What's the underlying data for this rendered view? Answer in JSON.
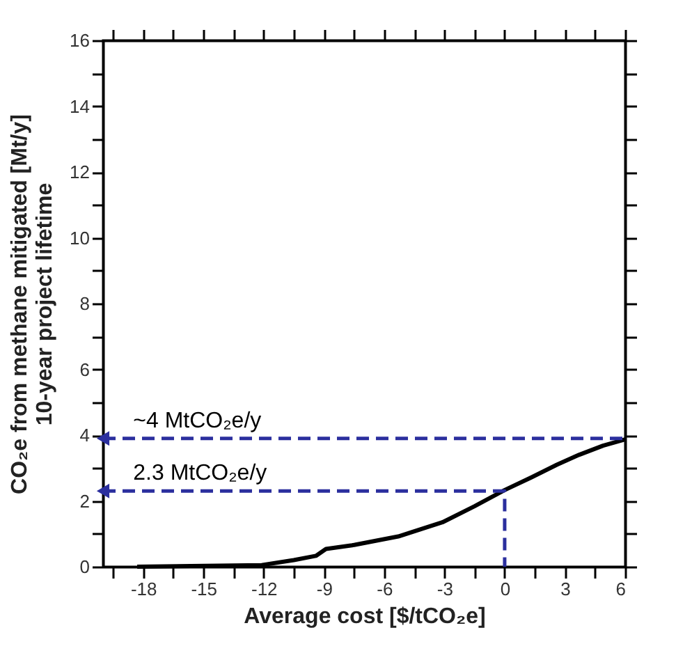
{
  "chart_data": {
    "type": "line",
    "xlabel": "Average cost [$/tCO₂e]",
    "ylabel": "CO₂e from methane mitigated [Mt/y]\n10-year project lifetime",
    "series": [
      {
        "color": "#000000",
        "x": [
          -18.3,
          -12.1,
          -10.5,
          -9.4,
          -8.9,
          -7.6,
          -5.3,
          -3.1,
          -1.5,
          0,
          1.45,
          2.6,
          3.7,
          4.9,
          6
        ],
        "values": [
          0,
          0.05,
          0.2,
          0.33,
          0.54,
          0.65,
          0.92,
          1.35,
          1.84,
          2.33,
          2.75,
          3.1,
          3.4,
          3.68,
          3.87
        ],
        "line_style": "solid"
      },
      {
        "color": "#2b2f9e",
        "x": [
          -20,
          0,
          0
        ],
        "values": [
          2.3,
          2.3,
          0
        ],
        "line_style": "dashed"
      },
      {
        "color": "#2b2f9e",
        "x": [
          -20,
          6
        ],
        "values": [
          3.9,
          3.9
        ],
        "line_style": "dashed"
      }
    ],
    "annotations": [
      {
        "text": "~4 MtCO₂e/y",
        "x": -18.5,
        "y": 3.9
      },
      {
        "text": "2.3 MtCO₂e/y",
        "x": -18.5,
        "y": 2.3
      }
    ],
    "xlim": [
      -20,
      6
    ],
    "xticks": [
      {
        "value": -19.5,
        "label": null
      },
      -18,
      {
        "value": -16.5,
        "label": null
      },
      -15,
      {
        "value": -13.5,
        "label": null
      },
      -12,
      {
        "value": -10.5,
        "label": null
      },
      -9,
      {
        "value": -7.5,
        "label": null
      },
      -6,
      {
        "value": -4.5,
        "label": null
      },
      -3,
      {
        "value": -1.5,
        "label": null
      },
      0,
      {
        "value": 1.5,
        "label": null
      },
      3,
      {
        "value": 4.5,
        "label": null
      },
      6
    ],
    "ylim": [
      0,
      16
    ],
    "yticks": [
      0,
      {
        "value": 1,
        "label": null
      },
      2,
      {
        "value": 3,
        "label": null
      },
      4,
      {
        "value": 5,
        "label": null
      },
      6,
      {
        "value": 7,
        "label": null
      },
      8,
      {
        "value": 9,
        "label": null
      },
      10,
      {
        "value": 11,
        "label": null
      },
      12,
      {
        "value": 13,
        "label": null
      },
      14,
      {
        "value": 15,
        "label": null
      },
      16
    ],
    "grid": false
  }
}
